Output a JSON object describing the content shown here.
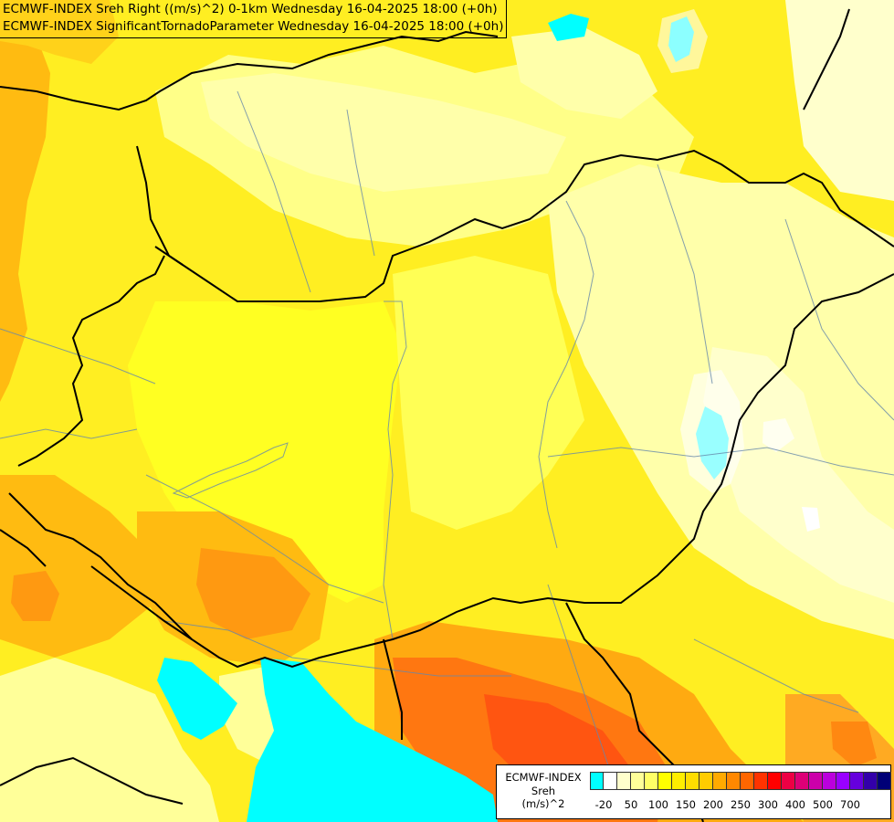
{
  "title": {
    "line1": "ECMWF-INDEX Sreh Right ((m/s)^2) 0-1km Wednesday 16-04-2025 18:00 (+0h)",
    "line2": "ECMWF-INDEX SignificantTornadoParameter Wednesday 16-04-2025 18:00 (+0h)"
  },
  "legend": {
    "source": "ECMWF-INDEX",
    "variable": "Sreh",
    "unit": "(m/s)^2",
    "colors": [
      "#00ffff",
      "#ffffff",
      "#ffffcc",
      "#ffff99",
      "#ffff66",
      "#ffff00",
      "#ffee00",
      "#ffdd00",
      "#ffcc00",
      "#ffaa00",
      "#ff8800",
      "#ff6600",
      "#ff3300",
      "#ff0000",
      "#ee0044",
      "#dd0077",
      "#cc00aa",
      "#bb00dd",
      "#9900ff",
      "#6600dd",
      "#3300aa",
      "#000077"
    ],
    "ticks": [
      "-20",
      "50",
      "100",
      "150",
      "200",
      "250",
      "300",
      "400",
      "500",
      "700"
    ]
  },
  "map_colors": {
    "base": "#ffff33",
    "light": "#ffffaa",
    "pale": "#ffffcc",
    "gold": "#ffdd22",
    "amber": "#ffbb11",
    "orange": "#ff9900",
    "deep_orange": "#ff6611",
    "red": "#ff3300",
    "cyan": "#00ffff",
    "white": "#ffffff",
    "border": "#000000",
    "river": "#6688aa"
  }
}
